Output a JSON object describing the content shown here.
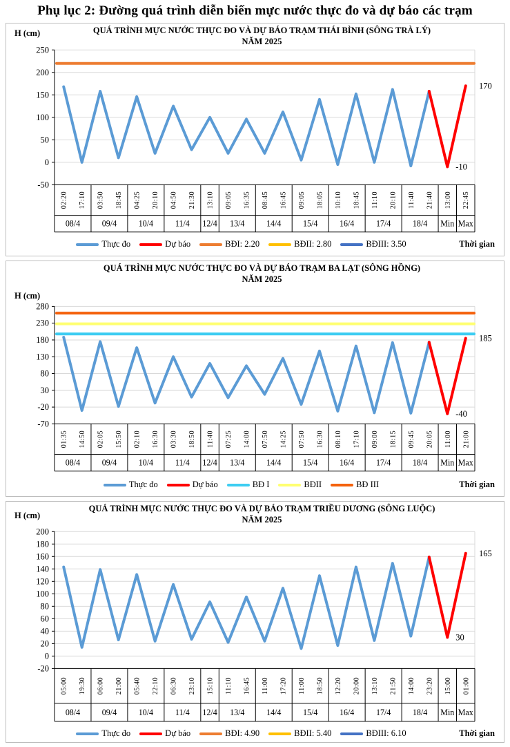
{
  "page": {
    "title": "Phụ lục 2: Đường quá trình diễn biến mực nước thực đo và dự báo các trạm"
  },
  "chart_data": [
    {
      "type": "line",
      "title": "QUÁ TRÌNH MỰC NƯỚC THỰC ĐO VÀ DỰ BÁO TRẠM THÁI BÌNH (SÔNG TRÀ LÝ)",
      "subtitle": "NĂM 2025",
      "ylabel": "H (cm)",
      "xlabel": "Thời gian",
      "ylim": [
        -50,
        250
      ],
      "ytick_step": 50,
      "grid": true,
      "legend_position": "bottom",
      "x_times": [
        "02:20",
        "17:10",
        "03:50",
        "18:45",
        "04:25",
        "20:10",
        "04:50",
        "21:30",
        "13:10",
        "09:05",
        "16:35",
        "08:45",
        "16:45",
        "09:05",
        "18:05",
        "10:10",
        "18:45",
        "11:10",
        "20:10",
        "11:40",
        "21:40",
        "13:00",
        "22:45"
      ],
      "date_groups": [
        {
          "label": "08/4",
          "span": 2
        },
        {
          "label": "09/4",
          "span": 2
        },
        {
          "label": "10/4",
          "span": 2
        },
        {
          "label": "11/4",
          "span": 2
        },
        {
          "label": "12/4",
          "span": 1
        },
        {
          "label": "13/4",
          "span": 2
        },
        {
          "label": "14/4",
          "span": 2
        },
        {
          "label": "15/4",
          "span": 2
        },
        {
          "label": "16/4",
          "span": 2
        },
        {
          "label": "17/4",
          "span": 2
        },
        {
          "label": "18/4",
          "span": 2
        },
        {
          "label": "Min",
          "span": 1
        },
        {
          "label": "Max",
          "span": 1
        }
      ],
      "series": [
        {
          "name": "Thực đo",
          "color": "#5B9BD5",
          "values": [
            168,
            0,
            158,
            10,
            146,
            20,
            125,
            28,
            100,
            20,
            96,
            20,
            112,
            5,
            140,
            -5,
            152,
            0,
            162,
            -8,
            158,
            null,
            null
          ]
        },
        {
          "name": "Dự báo",
          "color": "#FF0000",
          "values": [
            null,
            null,
            null,
            null,
            null,
            null,
            null,
            null,
            null,
            null,
            null,
            null,
            null,
            null,
            null,
            null,
            null,
            null,
            null,
            null,
            158,
            -10,
            170
          ]
        }
      ],
      "ref_lines": [
        {
          "name": "BĐI: 2.20",
          "color": "#ED7D31",
          "value": 220
        },
        {
          "name": "BĐII: 2.80",
          "color": "#FFC000",
          "value": 280
        },
        {
          "name": "BĐIII: 3.50",
          "color": "#4472C4",
          "value": 350
        }
      ],
      "annotations": [
        {
          "text": "170",
          "type": "max",
          "value": 170
        },
        {
          "text": "-10",
          "type": "min",
          "value": -10
        }
      ]
    },
    {
      "type": "line",
      "title": "QUÁ TRÌNH MỰC NƯỚC THỰC ĐO VÀ DỰ BÁO TRẠM BA LẠT (SÔNG HỒNG)",
      "subtitle": "NĂM 2025",
      "ylabel": "H (cm)",
      "xlabel": "Thời gian",
      "ylim": [
        -70,
        280
      ],
      "ytick_step": 50,
      "grid": true,
      "legend_position": "bottom",
      "x_times": [
        "01:35",
        "14:50",
        "02:05",
        "15:50",
        "02:10",
        "16:30",
        "03:30",
        "18:50",
        "11:40",
        "07:25",
        "14:00",
        "07:50",
        "14:25",
        "07:50",
        "16:30",
        "08:10",
        "17:10",
        "09:00",
        "18:15",
        "09:45",
        "20:05",
        "11:00",
        "21:00"
      ],
      "date_groups": [
        {
          "label": "08/4",
          "span": 2
        },
        {
          "label": "09/4",
          "span": 2
        },
        {
          "label": "10/4",
          "span": 2
        },
        {
          "label": "11/4",
          "span": 2
        },
        {
          "label": "12/4",
          "span": 1
        },
        {
          "label": "13/4",
          "span": 2
        },
        {
          "label": "14/4",
          "span": 2
        },
        {
          "label": "15/4",
          "span": 2
        },
        {
          "label": "16/4",
          "span": 2
        },
        {
          "label": "17/4",
          "span": 2
        },
        {
          "label": "18/4",
          "span": 2
        },
        {
          "label": "Min",
          "span": 1
        },
        {
          "label": "Max",
          "span": 1
        }
      ],
      "series": [
        {
          "name": "Thực đo",
          "color": "#5B9BD5",
          "values": [
            188,
            -30,
            175,
            -18,
            157,
            -8,
            130,
            10,
            110,
            8,
            103,
            18,
            125,
            -12,
            147,
            -32,
            162,
            -37,
            172,
            -38,
            173,
            null,
            null
          ]
        },
        {
          "name": "Dự báo",
          "color": "#FF0000",
          "values": [
            null,
            null,
            null,
            null,
            null,
            null,
            null,
            null,
            null,
            null,
            null,
            null,
            null,
            null,
            null,
            null,
            null,
            null,
            null,
            null,
            173,
            -40,
            185
          ]
        }
      ],
      "ref_lines": [
        {
          "name": "BĐ I",
          "color": "#3DCDF2",
          "value": 198
        },
        {
          "name": "BĐII",
          "color": "#FFFF70",
          "value": 228
        },
        {
          "name": "BĐ III",
          "color": "#F4610C",
          "value": 260
        }
      ],
      "annotations": [
        {
          "text": "185",
          "type": "max",
          "value": 185
        },
        {
          "text": "-40",
          "type": "min",
          "value": -40
        }
      ]
    },
    {
      "type": "line",
      "title": "QUÁ TRÌNH MỰC NƯỚC THỰC ĐO VÀ DỰ BÁO TRẠM TRIỀU DƯƠNG (SÔNG LUỘC)",
      "subtitle": "NĂM 2025",
      "ylabel": "H (cm)",
      "xlabel": "Thời gian",
      "ylim": [
        -20,
        200
      ],
      "ytick_step": 20,
      "grid": true,
      "legend_position": "bottom",
      "x_times": [
        "05:00",
        "19:30",
        "06:00",
        "21:00",
        "05:40",
        "22:10",
        "06:30",
        "23:10",
        "15:10",
        "11:10",
        "16:45",
        "11:00",
        "17:20",
        "11:00",
        "18:50",
        "12:20",
        "20:00",
        "13:10",
        "21:50",
        "14:00",
        "23:20",
        "15:00",
        "01:00"
      ],
      "date_groups": [
        {
          "label": "08/4",
          "span": 2
        },
        {
          "label": "09/4",
          "span": 2
        },
        {
          "label": "10/4",
          "span": 2
        },
        {
          "label": "11/4",
          "span": 2
        },
        {
          "label": "12/4",
          "span": 1
        },
        {
          "label": "13/4",
          "span": 2
        },
        {
          "label": "14/4",
          "span": 2
        },
        {
          "label": "15/4",
          "span": 2
        },
        {
          "label": "16/4",
          "span": 2
        },
        {
          "label": "17/4",
          "span": 2
        },
        {
          "label": "18/4",
          "span": 2
        },
        {
          "label": "Min",
          "span": 1
        },
        {
          "label": "Max",
          "span": 1
        }
      ],
      "series": [
        {
          "name": "Thực đo",
          "color": "#5B9BD5",
          "values": [
            143,
            14,
            139,
            26,
            131,
            24,
            115,
            27,
            87,
            22,
            95,
            24,
            109,
            12,
            129,
            17,
            143,
            25,
            149,
            32,
            159,
            null,
            null
          ]
        },
        {
          "name": "Dự báo",
          "color": "#FF0000",
          "values": [
            null,
            null,
            null,
            null,
            null,
            null,
            null,
            null,
            null,
            null,
            null,
            null,
            null,
            null,
            null,
            null,
            null,
            null,
            null,
            null,
            159,
            30,
            165
          ]
        }
      ],
      "ref_lines": [
        {
          "name": "BĐI: 4.90",
          "color": "#ED7D31",
          "value": 490
        },
        {
          "name": "BĐII: 5.40",
          "color": "#FFC000",
          "value": 540
        },
        {
          "name": "BĐIII: 6.10",
          "color": "#4472C4",
          "value": 610
        }
      ],
      "annotations": [
        {
          "text": "165",
          "type": "max",
          "value": 165
        },
        {
          "text": "30",
          "type": "min",
          "value": 30
        }
      ]
    }
  ]
}
